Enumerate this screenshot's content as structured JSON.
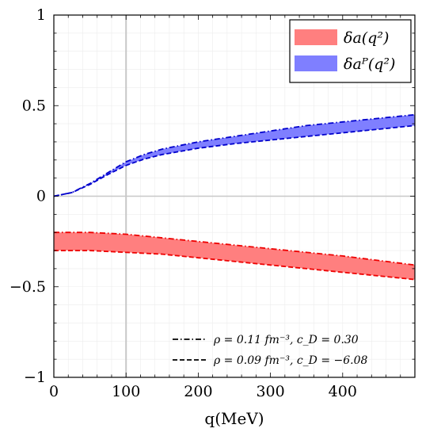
{
  "chart_data": {
    "type": "area",
    "xlabel": "q(MeV)",
    "ylabel": "",
    "xlim": [
      0,
      500
    ],
    "ylim": [
      -1,
      1
    ],
    "x_ticks": [
      0,
      100,
      200,
      300,
      400
    ],
    "x_tick_labels": [
      "0",
      "100",
      "200",
      "300",
      "400"
    ],
    "y_ticks": [
      -1,
      -0.5,
      0,
      0.5,
      1
    ],
    "y_tick_labels": [
      "−1",
      "−0.5",
      "0",
      "0.5",
      "1"
    ],
    "reference_lines": {
      "horizontal": 0,
      "vertical": 100
    },
    "legend_position": "top-right",
    "series": [
      {
        "name": "δa(q²)",
        "color": "#ff7f7f",
        "line_color": "#ee0000",
        "x": [
          0,
          50,
          100,
          150,
          200,
          250,
          300,
          350,
          400,
          450,
          500
        ],
        "upper": [
          -0.2,
          -0.2,
          -0.21,
          -0.23,
          -0.25,
          -0.27,
          -0.29,
          -0.31,
          -0.33,
          -0.355,
          -0.38
        ],
        "lower": [
          -0.3,
          -0.3,
          -0.31,
          -0.32,
          -0.34,
          -0.36,
          -0.38,
          -0.4,
          -0.42,
          -0.44,
          -0.46
        ]
      },
      {
        "name": "δaᴾ(q²)",
        "color": "#7f7fff",
        "line_color": "#0000cc",
        "x": [
          0,
          25,
          50,
          75,
          100,
          125,
          150,
          200,
          250,
          300,
          350,
          400,
          450,
          500
        ],
        "upper": [
          0,
          0.02,
          0.07,
          0.13,
          0.19,
          0.23,
          0.26,
          0.3,
          0.33,
          0.36,
          0.39,
          0.41,
          0.43,
          0.45
        ],
        "lower": [
          0,
          0.02,
          0.065,
          0.12,
          0.17,
          0.205,
          0.23,
          0.265,
          0.29,
          0.31,
          0.33,
          0.35,
          0.37,
          0.39
        ]
      }
    ],
    "line_styles": [
      {
        "style": "dash-dot",
        "label": "ρ = 0.11 fm⁻³,  c_D = 0.30"
      },
      {
        "style": "dashed",
        "label": "ρ = 0.09 fm⁻³,  c_D = −6.08"
      }
    ]
  }
}
